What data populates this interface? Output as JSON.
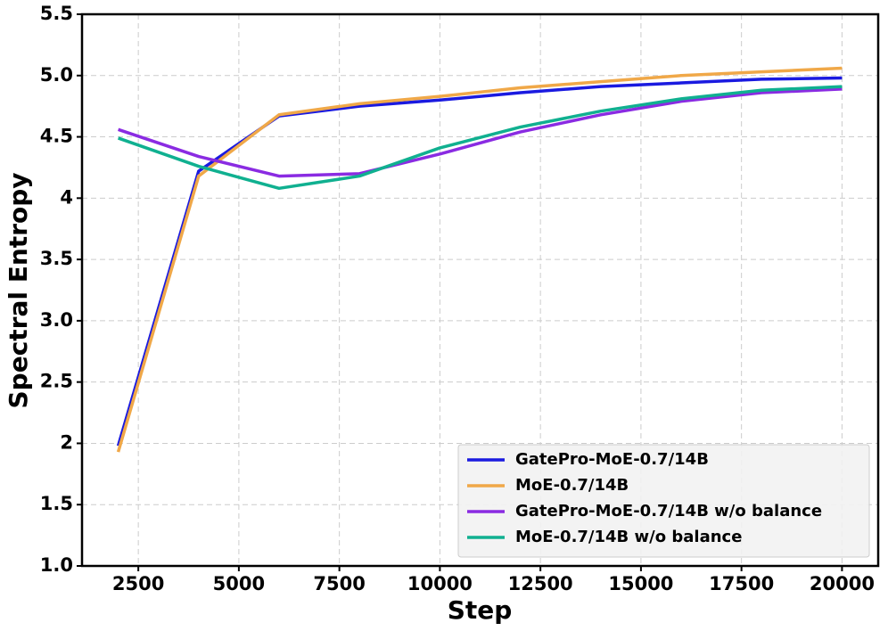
{
  "chart_data": {
    "type": "line",
    "xlabel": "Step",
    "ylabel": "Spectral Entropy",
    "x": [
      2000,
      4000,
      6000,
      8000,
      10000,
      12000,
      14000,
      16000,
      18000,
      20000
    ],
    "series": [
      {
        "name": "GatePro-MoE-0.7/14B",
        "color": "#1a1ae0",
        "values": [
          1.98,
          4.22,
          4.67,
          4.75,
          4.8,
          4.86,
          4.91,
          4.94,
          4.97,
          4.98
        ]
      },
      {
        "name": "MoE-0.7/14B",
        "color": "#f0a848",
        "values": [
          1.93,
          4.18,
          4.68,
          4.77,
          4.83,
          4.9,
          4.95,
          5.0,
          5.03,
          5.06
        ]
      },
      {
        "name": "GatePro-MoE-0.7/14B w/o balance",
        "color": "#8a2be2",
        "values": [
          4.56,
          4.34,
          4.18,
          4.2,
          4.36,
          4.54,
          4.68,
          4.79,
          4.86,
          4.89
        ]
      },
      {
        "name": "MoE-0.7/14B w/o balance",
        "color": "#10b090",
        "values": [
          4.49,
          4.26,
          4.08,
          4.18,
          4.41,
          4.58,
          4.71,
          4.81,
          4.88,
          4.91
        ]
      }
    ],
    "xlim": [
      1100,
      20900
    ],
    "ylim": [
      1.0,
      5.5
    ],
    "xticks": [
      2500,
      5000,
      7500,
      10000,
      12500,
      15000,
      17500,
      20000
    ],
    "yticks": [
      {
        "value": 1.0,
        "label": "1.0"
      },
      1.5,
      2.0,
      2.5,
      {
        "value": 3.0,
        "label": "3.0"
      },
      3.5,
      4.0,
      4.5,
      {
        "value": 5.0,
        "label": "5.0"
      },
      5.5
    ],
    "grid": true,
    "legend": "lower right"
  }
}
